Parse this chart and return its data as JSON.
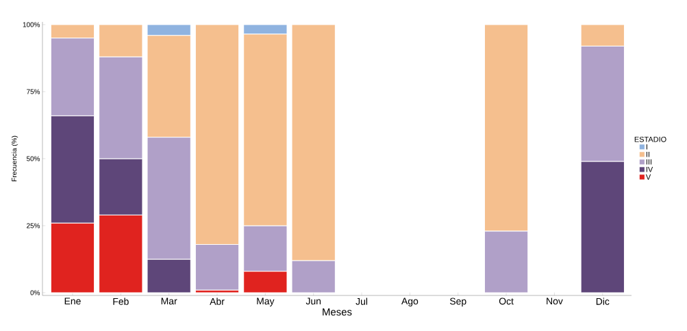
{
  "chart_data": {
    "type": "bar",
    "stacked": true,
    "xlabel": "Meses",
    "ylabel": "Frecuencia (%)",
    "legend_title": "ESTADIO",
    "legend": "right",
    "categories": [
      "Ene",
      "Feb",
      "Mar",
      "Abr",
      "May",
      "Jun",
      "Jul",
      "Ago",
      "Sep",
      "Oct",
      "Nov",
      "Dic"
    ],
    "series": [
      {
        "name": "V",
        "color": "#e0231f",
        "values": [
          26,
          29,
          null,
          1,
          8,
          null,
          null,
          null,
          null,
          null,
          null,
          null
        ]
      },
      {
        "name": "IV",
        "color": "#5e4679",
        "values": [
          40,
          21,
          12.5,
          null,
          null,
          null,
          null,
          null,
          null,
          null,
          null,
          49
        ]
      },
      {
        "name": "III",
        "color": "#b0a0c8",
        "values": [
          29,
          38,
          45.5,
          17,
          17,
          12,
          null,
          null,
          null,
          23,
          null,
          43
        ]
      },
      {
        "name": "II",
        "color": "#f5bf8e",
        "values": [
          5,
          12,
          38,
          82,
          71.5,
          88,
          null,
          null,
          null,
          77,
          null,
          8
        ]
      },
      {
        "name": "I",
        "color": "#8fb3e0",
        "values": [
          null,
          null,
          4,
          null,
          3.5,
          null,
          null,
          null,
          null,
          null,
          null,
          null
        ]
      }
    ],
    "ylim": [
      0,
      100
    ],
    "yticks": [
      {
        "value": 0,
        "label": "0%"
      },
      {
        "value": 25,
        "label": "25%"
      },
      {
        "value": 50,
        "label": "50%"
      },
      {
        "value": 75,
        "label": "75%"
      },
      {
        "value": 100,
        "label": "100%"
      }
    ],
    "grid": false
  }
}
